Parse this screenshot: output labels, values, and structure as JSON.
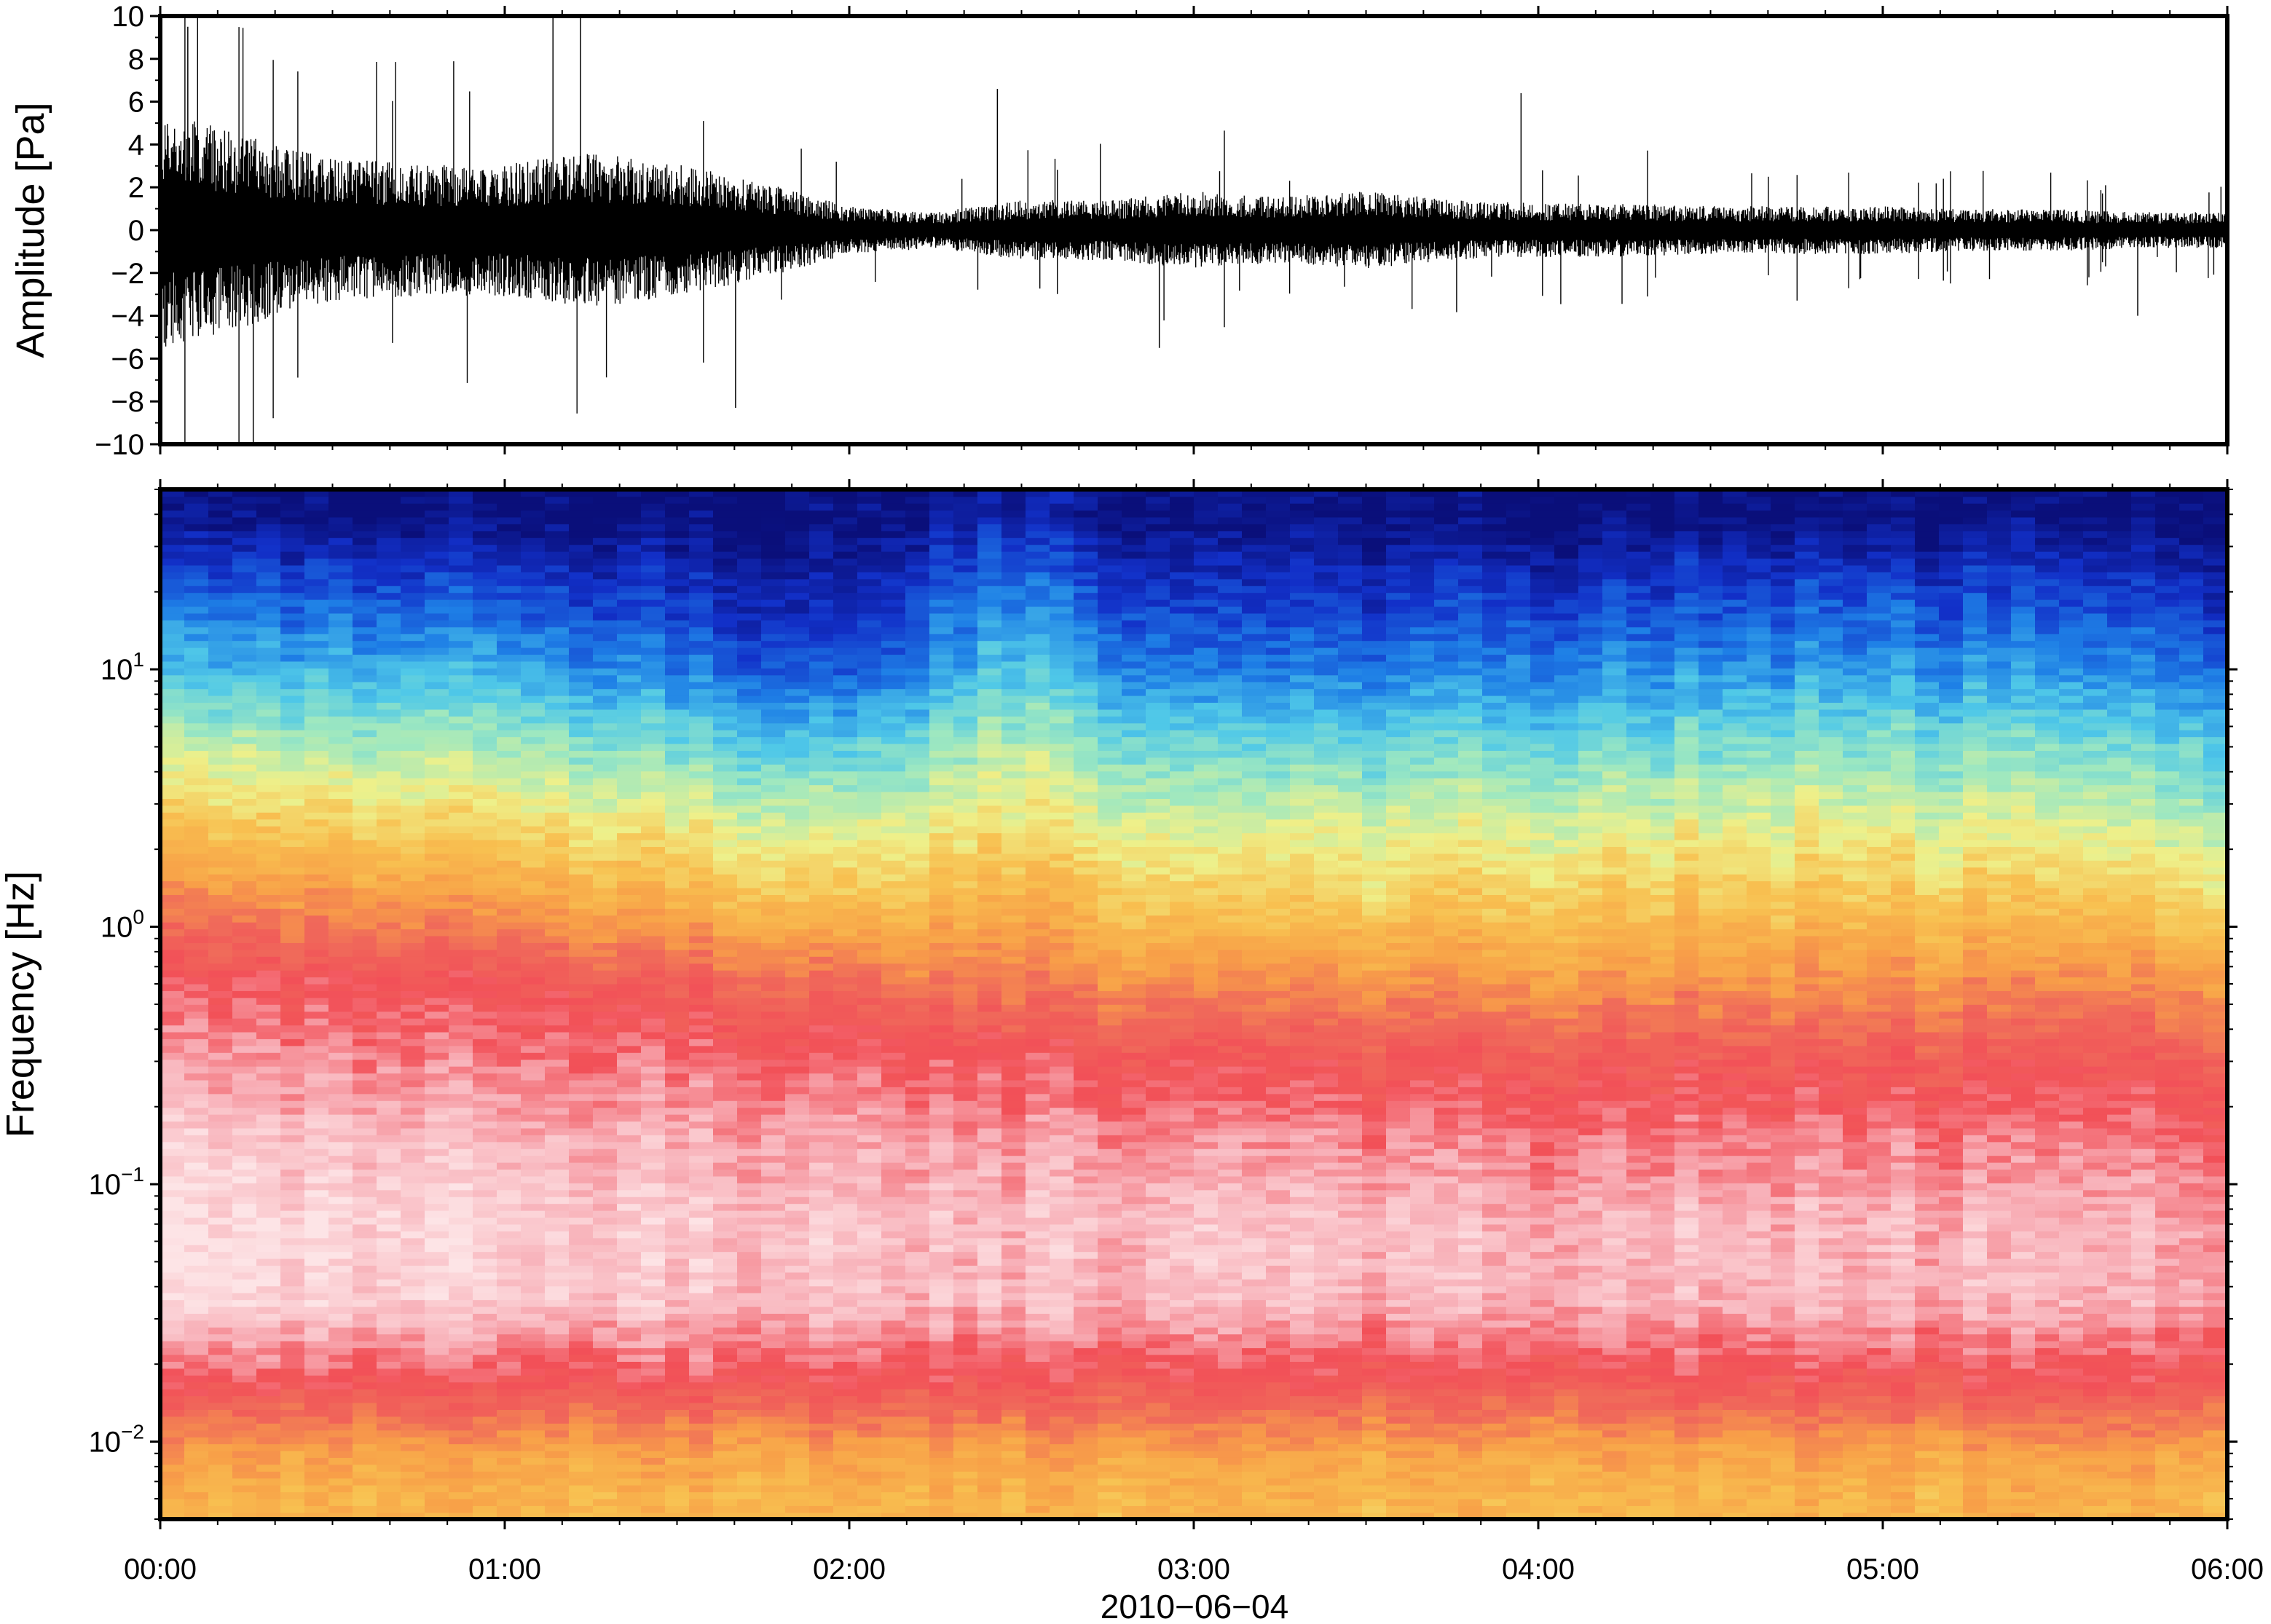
{
  "chart_data": [
    {
      "type": "line",
      "title": "",
      "xlabel": "",
      "ylabel": "Amplitude [Pa]",
      "ylim": [
        -10,
        10
      ],
      "yticks": [
        -10,
        -8,
        -6,
        -4,
        -2,
        0,
        2,
        4,
        6,
        8,
        10
      ],
      "ytick_labels": [
        "−10",
        "−8",
        "−6",
        "−4",
        "−2",
        "0",
        "2",
        "4",
        "6",
        "8",
        "10"
      ],
      "xlim_hours": [
        0,
        6
      ],
      "grid": false,
      "line_color": "#000000",
      "envelope": {
        "x_hours": [
          0.0,
          0.25,
          0.5,
          0.75,
          1.0,
          1.25,
          1.5,
          1.75,
          2.0,
          2.25,
          2.5,
          2.75,
          3.0,
          3.25,
          3.5,
          3.75,
          4.0,
          4.25,
          4.5,
          4.75,
          5.0,
          5.25,
          5.5,
          5.75,
          6.0
        ],
        "amplitude": [
          4.0,
          3.2,
          2.4,
          2.2,
          2.2,
          2.6,
          2.2,
          1.6,
          0.8,
          0.6,
          1.0,
          1.0,
          1.3,
          1.1,
          1.3,
          1.0,
          0.9,
          0.9,
          0.8,
          0.8,
          0.8,
          0.7,
          0.7,
          0.6,
          0.6
        ]
      },
      "notable_peaks": [
        {
          "x_hours": 0.08,
          "value": 9.5
        },
        {
          "x_hours": 0.27,
          "value": -10
        },
        {
          "x_hours": 1.14,
          "value": 10
        },
        {
          "x_hours": 1.22,
          "value": 10
        },
        {
          "x_hours": 1.67,
          "value": -8.3
        },
        {
          "x_hours": 2.43,
          "value": 6.6
        },
        {
          "x_hours": 2.9,
          "value": -5.5
        },
        {
          "x_hours": 3.95,
          "value": 6.4
        },
        {
          "x_hours": 5.74,
          "value": -4.0
        }
      ]
    },
    {
      "type": "heatmap",
      "title": "",
      "xlabel": "2010−06−04",
      "ylabel": "Frequency [Hz]",
      "y_scale": "log",
      "ylim": [
        0.005,
        50
      ],
      "ytick_labels": [
        {
          "value": 0.01,
          "base": "10",
          "exp": "−2"
        },
        {
          "value": 0.1,
          "base": "10",
          "exp": "−1"
        },
        {
          "value": 1,
          "base": "10",
          "exp": "0"
        },
        {
          "value": 10,
          "base": "10",
          "exp": "1"
        }
      ],
      "xlim_hours": [
        0,
        6
      ],
      "xticks_hours": [
        0,
        1,
        2,
        3,
        4,
        5,
        6
      ],
      "xtick_labels": [
        "00:00",
        "01:00",
        "02:00",
        "03:00",
        "04:00",
        "05:00",
        "06:00"
      ],
      "grid": false,
      "colorscale": [
        "#0a0f7a",
        "#1230c8",
        "#1e7fe6",
        "#4fc8e8",
        "#9ee8c0",
        "#eef08a",
        "#f8c050",
        "#f8a048",
        "#f06a5a",
        "#f25058",
        "#f8b0b8",
        "#fde4e6"
      ],
      "rows": {
        "freq_hz": [
          40,
          20,
          10,
          5,
          2.5,
          1.2,
          0.6,
          0.3,
          0.15,
          0.07,
          0.035,
          0.018,
          0.009,
          0.006
        ],
        "level_at_hours": {
          "hours": [
            0,
            1,
            2,
            2.45,
            3,
            4,
            5,
            6
          ],
          "levels": [
            [
              0.0,
              0.0,
              0.0,
              0.05,
              0.0,
              0.0,
              0.0,
              0.0
            ],
            [
              0.14,
              0.12,
              0.05,
              0.18,
              0.08,
              0.1,
              0.12,
              0.08
            ],
            [
              0.25,
              0.24,
              0.12,
              0.28,
              0.16,
              0.2,
              0.22,
              0.17
            ],
            [
              0.4,
              0.37,
              0.28,
              0.4,
              0.3,
              0.32,
              0.34,
              0.3
            ],
            [
              0.52,
              0.5,
              0.42,
              0.48,
              0.42,
              0.44,
              0.45,
              0.4
            ],
            [
              0.68,
              0.64,
              0.55,
              0.6,
              0.52,
              0.54,
              0.55,
              0.52
            ],
            [
              0.82,
              0.8,
              0.72,
              0.7,
              0.66,
              0.66,
              0.66,
              0.66
            ],
            [
              0.88,
              0.86,
              0.84,
              0.82,
              0.8,
              0.78,
              0.78,
              0.78
            ],
            [
              0.95,
              0.92,
              0.9,
              0.88,
              0.88,
              0.86,
              0.86,
              0.84
            ],
            [
              0.98,
              0.96,
              0.94,
              0.93,
              0.94,
              0.93,
              0.92,
              0.9
            ],
            [
              0.97,
              0.95,
              0.93,
              0.92,
              0.93,
              0.92,
              0.92,
              0.9
            ],
            [
              0.82,
              0.82,
              0.82,
              0.8,
              0.8,
              0.8,
              0.8,
              0.8
            ],
            [
              0.62,
              0.62,
              0.62,
              0.62,
              0.62,
              0.62,
              0.62,
              0.62
            ],
            [
              0.58,
              0.58,
              0.58,
              0.58,
              0.58,
              0.58,
              0.58,
              0.58
            ]
          ]
        }
      }
    }
  ]
}
